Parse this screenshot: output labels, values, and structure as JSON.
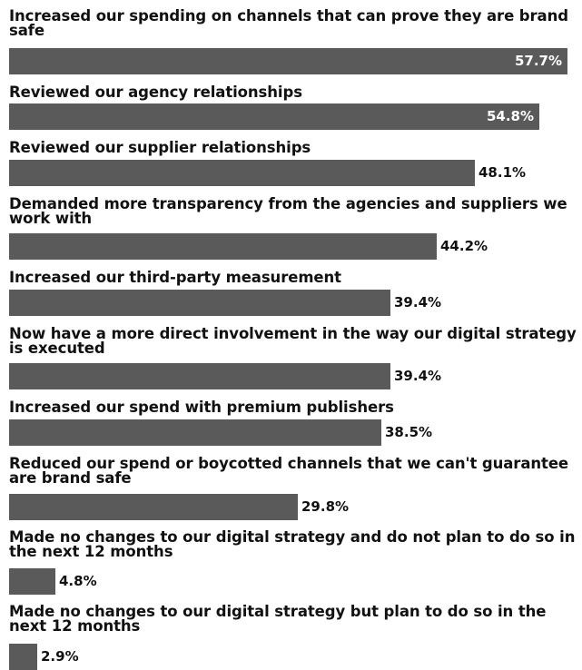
{
  "chart_data": {
    "type": "bar",
    "orientation": "horizontal",
    "unit": "%",
    "categories": [
      "Increased our spending on channels that can prove they are brand safe",
      "Reviewed our agency relationships",
      "Reviewed our supplier relationships",
      "Demanded more transparency from the agencies and suppliers we work with",
      "Increased our third-party measurement",
      "Now have a more direct involvement in the way our digital strategy is executed",
      "Increased our spend with premium publishers",
      "Reduced our spend or boycotted channels that we can't guarantee are brand safe",
      "Made no changes to our digital strategy and do not plan to do so in the next 12 months",
      "Made no changes to our digital strategy but plan to do so in the next 12 months"
    ],
    "values": [
      57.7,
      54.8,
      48.1,
      44.2,
      39.4,
      39.4,
      38.5,
      29.8,
      4.8,
      2.9
    ],
    "value_labels": [
      "57.7%",
      "54.8%",
      "48.1%",
      "44.2%",
      "39.4%",
      "39.4%",
      "38.5%",
      "29.8%",
      "4.8%",
      "2.9%"
    ],
    "bar_color": "#5a5a5a",
    "grid": false,
    "legend": "none"
  }
}
